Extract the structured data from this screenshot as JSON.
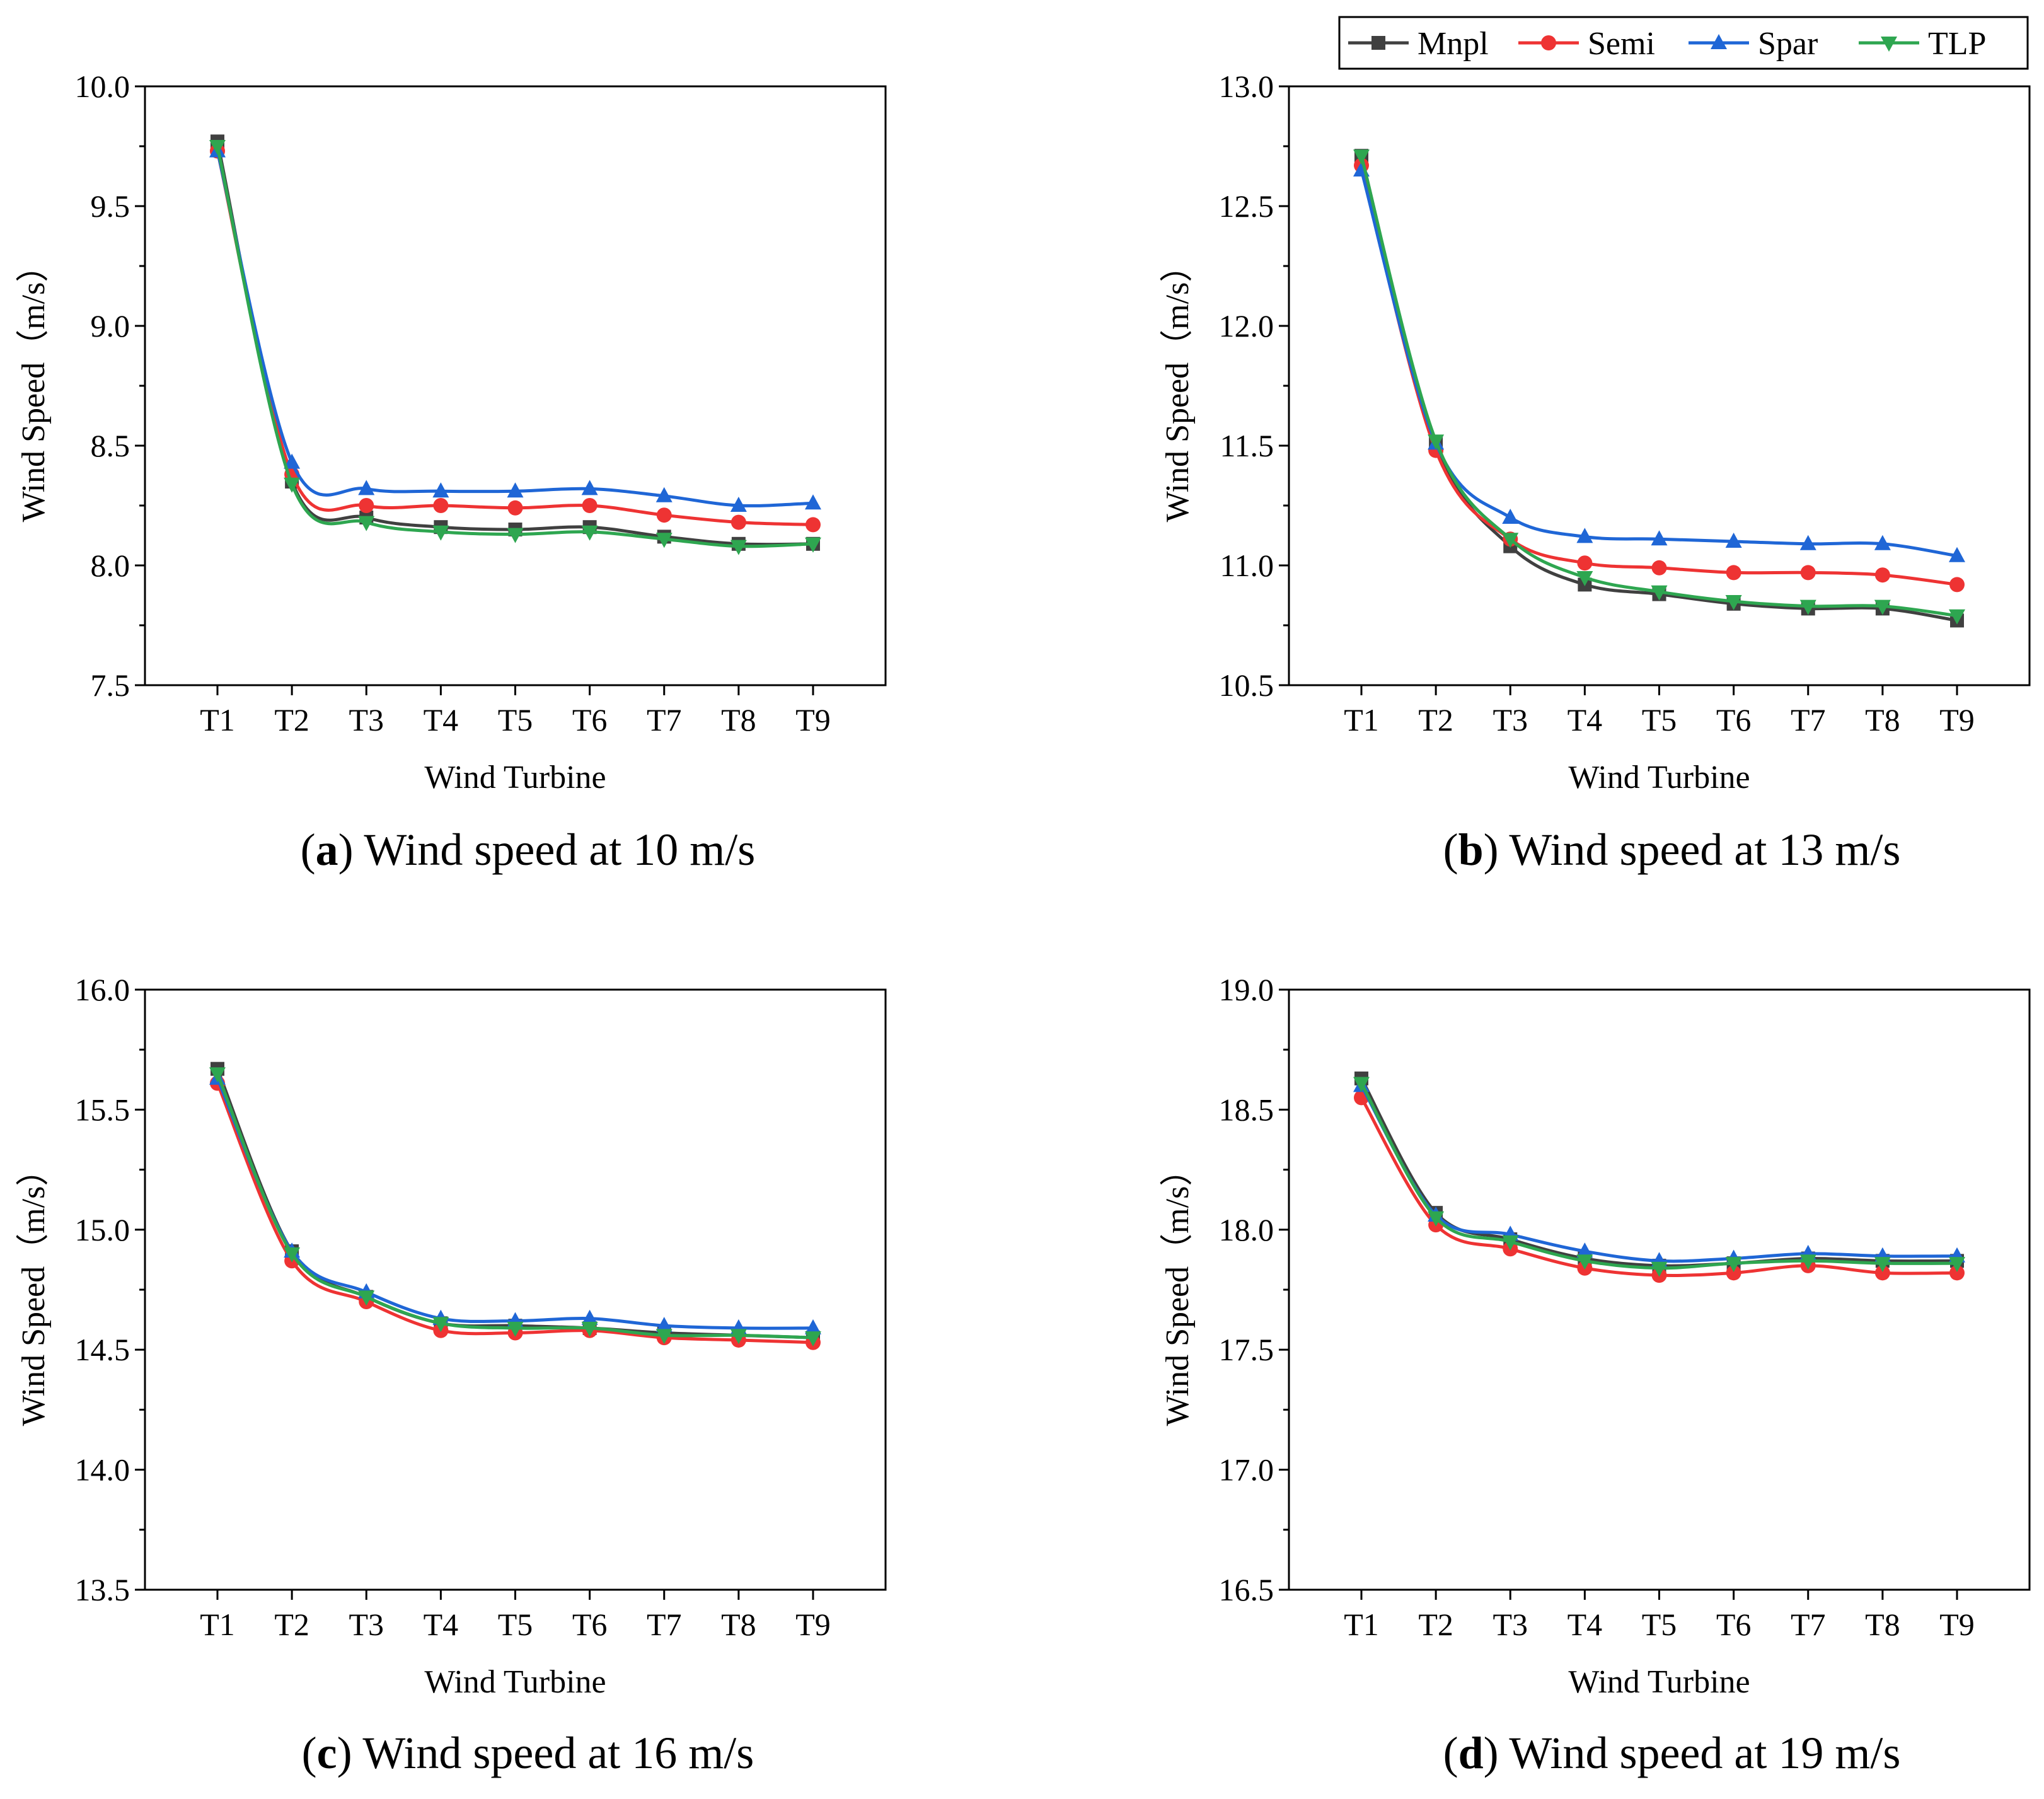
{
  "legend": {
    "entries": [
      {
        "name": "Mnpl",
        "color": "#404040",
        "marker": "square"
      },
      {
        "name": "Semi",
        "color": "#ee3333",
        "marker": "circle"
      },
      {
        "name": "Spar",
        "color": "#1f66d6",
        "marker": "triangle-up"
      },
      {
        "name": "TLP",
        "color": "#2ea650",
        "marker": "triangle-down"
      }
    ],
    "placement": "top-right"
  },
  "chart_data": [
    {
      "type": "line",
      "id": "a",
      "caption_letter": "a",
      "caption_text": "Wind speed at 10 m/s",
      "xlabel": "Wind Turbine",
      "ylabel": "Wind Speed（m/s）",
      "categories": [
        "T1",
        "T2",
        "T3",
        "T4",
        "T5",
        "T6",
        "T7",
        "T8",
        "T9"
      ],
      "ylim": [
        7.5,
        10.0
      ],
      "yticks": [
        "7.5",
        "8.0",
        "8.5",
        "9.0",
        "9.5",
        "10.0"
      ],
      "grid": false,
      "series": [
        {
          "name": "Mnpl",
          "values": [
            9.77,
            8.35,
            8.2,
            8.16,
            8.15,
            8.16,
            8.12,
            8.09,
            8.09
          ]
        },
        {
          "name": "Semi",
          "values": [
            9.73,
            8.38,
            8.25,
            8.25,
            8.24,
            8.25,
            8.21,
            8.18,
            8.17
          ]
        },
        {
          "name": "Spar",
          "values": [
            9.73,
            8.43,
            8.32,
            8.31,
            8.31,
            8.32,
            8.29,
            8.25,
            8.26
          ]
        },
        {
          "name": "TLP",
          "values": [
            9.75,
            8.34,
            8.18,
            8.14,
            8.13,
            8.14,
            8.11,
            8.08,
            8.09
          ]
        }
      ]
    },
    {
      "type": "line",
      "id": "b",
      "caption_letter": "b",
      "caption_text": "Wind speed at 13 m/s",
      "xlabel": "Wind Turbine",
      "ylabel": "Wind Speed（m/s）",
      "categories": [
        "T1",
        "T2",
        "T3",
        "T4",
        "T5",
        "T6",
        "T7",
        "T8",
        "T9"
      ],
      "ylim": [
        10.5,
        13.0
      ],
      "yticks": [
        "10.5",
        "11.0",
        "11.5",
        "12.0",
        "12.5",
        "13.0"
      ],
      "grid": false,
      "series": [
        {
          "name": "Mnpl",
          "values": [
            12.71,
            11.51,
            11.08,
            10.92,
            10.88,
            10.84,
            10.82,
            10.82,
            10.77
          ]
        },
        {
          "name": "Semi",
          "values": [
            12.67,
            11.48,
            11.11,
            11.01,
            10.99,
            10.97,
            10.97,
            10.96,
            10.92
          ]
        },
        {
          "name": "Spar",
          "values": [
            12.65,
            11.51,
            11.2,
            11.12,
            11.11,
            11.1,
            11.09,
            11.09,
            11.04
          ]
        },
        {
          "name": "TLP",
          "values": [
            12.71,
            11.52,
            11.11,
            10.95,
            10.89,
            10.85,
            10.83,
            10.83,
            10.79
          ]
        }
      ]
    },
    {
      "type": "line",
      "id": "c",
      "caption_letter": "c",
      "caption_text": "Wind speed at 16 m/s",
      "xlabel": "Wind Turbine",
      "ylabel": "Wind Speed（m/s）",
      "categories": [
        "T1",
        "T2",
        "T3",
        "T4",
        "T5",
        "T6",
        "T7",
        "T8",
        "T9"
      ],
      "ylim": [
        13.5,
        16.0
      ],
      "yticks": [
        "13.5",
        "14.0",
        "14.5",
        "15.0",
        "15.5",
        "16.0"
      ],
      "grid": false,
      "series": [
        {
          "name": "Mnpl",
          "values": [
            15.67,
            14.91,
            14.72,
            14.61,
            14.6,
            14.59,
            14.57,
            14.56,
            14.55
          ]
        },
        {
          "name": "Semi",
          "values": [
            15.61,
            14.87,
            14.7,
            14.58,
            14.57,
            14.58,
            14.55,
            14.54,
            14.53
          ]
        },
        {
          "name": "Spar",
          "values": [
            15.63,
            14.91,
            14.74,
            14.63,
            14.62,
            14.63,
            14.6,
            14.59,
            14.59
          ]
        },
        {
          "name": "TLP",
          "values": [
            15.65,
            14.9,
            14.72,
            14.61,
            14.59,
            14.59,
            14.56,
            14.56,
            14.55
          ]
        }
      ]
    },
    {
      "type": "line",
      "id": "d",
      "caption_letter": "d",
      "caption_text": "Wind speed at 19 m/s",
      "xlabel": "Wind Turbine",
      "ylabel": "Wind Speed（m/s）",
      "categories": [
        "T1",
        "T2",
        "T3",
        "T4",
        "T5",
        "T6",
        "T7",
        "T8",
        "T9"
      ],
      "ylim": [
        16.5,
        19.0
      ],
      "yticks": [
        "16.5",
        "17.0",
        "17.5",
        "18.0",
        "18.5",
        "19.0"
      ],
      "grid": false,
      "series": [
        {
          "name": "Mnpl",
          "values": [
            18.63,
            18.07,
            17.96,
            17.88,
            17.85,
            17.86,
            17.88,
            17.87,
            17.87
          ]
        },
        {
          "name": "Semi",
          "values": [
            18.55,
            18.02,
            17.92,
            17.84,
            17.81,
            17.82,
            17.85,
            17.82,
            17.82
          ]
        },
        {
          "name": "Spar",
          "values": [
            18.6,
            18.06,
            17.98,
            17.91,
            17.87,
            17.88,
            17.9,
            17.89,
            17.89
          ]
        },
        {
          "name": "TLP",
          "values": [
            18.61,
            18.05,
            17.95,
            17.87,
            17.84,
            17.86,
            17.87,
            17.86,
            17.86
          ]
        }
      ]
    }
  ]
}
